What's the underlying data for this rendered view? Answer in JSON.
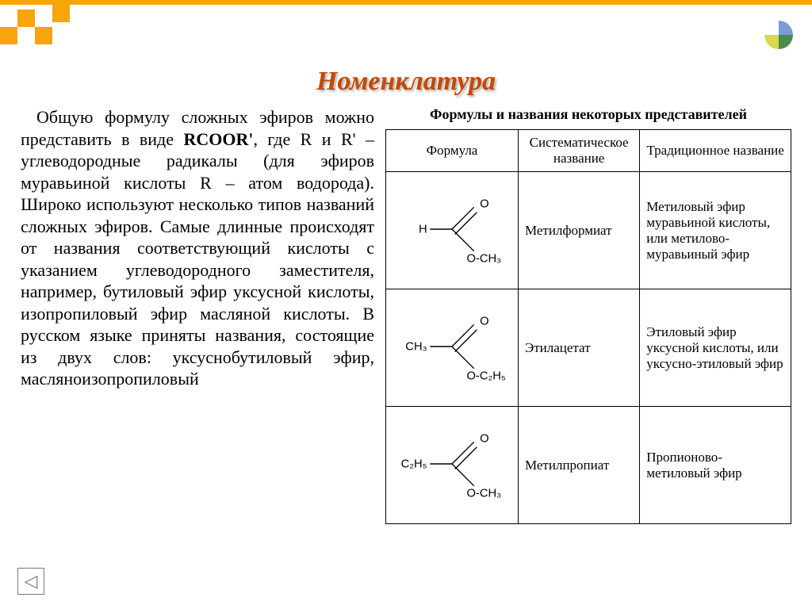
{
  "accent_color": "#f7a50a",
  "title": "Номенклатура",
  "title_color": "#c54800",
  "left_text": {
    "lead_in": "Общую формулу сложных эфиров можно представить в виде ",
    "bold1": "RCOOR'",
    "after_bold1": ", где R и R' – углеводородные радикалы (для эфиров муравьиной кислоты R – атом водорода). Широко используют несколько типов названий сложных эфиров. Самые длинные происходят от названия соответствующий кислоты с указанием углеводородного заместителя, например, бутиловый эфир уксусной кислоты, изопропиловый эфир масляной кислоты. В русском языке приняты названия, состоящие из двух слов: уксуснобутиловый эфир, масляноизопропиловый"
  },
  "table": {
    "caption": "Формулы и названия некоторых представителей",
    "headers": [
      "Формула",
      "Систематическое название",
      "Традиционное название"
    ],
    "rows": [
      {
        "formula": {
          "left": "H",
          "down": "O-CH₃"
        },
        "systematic": "Метилформиат",
        "traditional": "Метиловый эфир муравьиной кислоты, или метилово-муравьиный эфир"
      },
      {
        "formula": {
          "left": "CH₃",
          "down": "O-C₂H₅"
        },
        "systematic": "Этилацетат",
        "traditional": "Этиловый эфир уксусной кислоты, или уксусно-этиловый эфир"
      },
      {
        "formula": {
          "left": "C₂H₅",
          "down": "O-CH₃"
        },
        "systematic": "Метилпропиат",
        "traditional": "Пропионово-метиловый эфир"
      }
    ]
  },
  "nav": {
    "back_symbol": "◁"
  }
}
